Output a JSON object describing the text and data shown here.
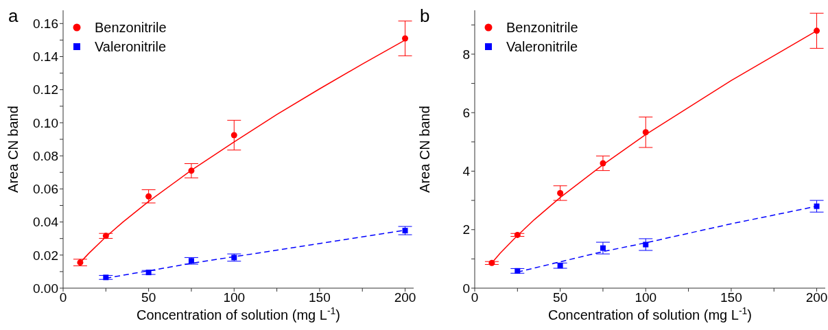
{
  "chart_data": [
    {
      "type": "scatter",
      "title": "a",
      "xlabel": "Concentration of solution (mg L$^{-1}$)",
      "ylabel": "Area CN band",
      "xlim": [
        0,
        205
      ],
      "xticks": [
        0,
        {
          "value": 25,
          "label": null
        },
        50,
        {
          "value": 75,
          "label": null
        },
        100,
        {
          "value": 125,
          "label": null
        },
        150,
        {
          "value": 175,
          "label": null
        },
        200
      ],
      "ylim": [
        0,
        0.168
      ],
      "yticks": [
        {
          "value": 0,
          "label": "0.00"
        },
        {
          "value": 0.01,
          "label": null
        },
        {
          "value": 0.02,
          "label": "0.02"
        },
        {
          "value": 0.03,
          "label": null
        },
        {
          "value": 0.04,
          "label": "0.04"
        },
        {
          "value": 0.05,
          "label": null
        },
        {
          "value": 0.06,
          "label": "0.06"
        },
        {
          "value": 0.07,
          "label": null
        },
        {
          "value": 0.08,
          "label": "0.08"
        },
        {
          "value": 0.09,
          "label": null
        },
        {
          "value": 0.1,
          "label": "0.10"
        },
        {
          "value": 0.11,
          "label": null
        },
        {
          "value": 0.12,
          "label": "0.12"
        },
        {
          "value": 0.13,
          "label": null
        },
        {
          "value": 0.14,
          "label": "0.14"
        },
        {
          "value": 0.15,
          "label": null
        },
        {
          "value": 0.16,
          "label": "0.16"
        }
      ],
      "grid": false,
      "legend": "top left",
      "series": [
        {
          "name": "Benzonitrile",
          "color": "#ff0000",
          "marker": "circle",
          "x": [
            10,
            25,
            50,
            75,
            100,
            200
          ],
          "values": [
            0.0155,
            0.0316,
            0.0555,
            0.071,
            0.0925,
            0.151
          ],
          "errors": [
            0.002,
            0.0015,
            0.004,
            0.0043,
            0.009,
            0.0105
          ]
        },
        {
          "name": "Valeronitrile",
          "color": "#0000ff",
          "marker": "square",
          "x": [
            25,
            50,
            75,
            100,
            200
          ],
          "values": [
            0.0065,
            0.0095,
            0.0165,
            0.0185,
            0.0348
          ],
          "errors": [
            0.0012,
            0.0012,
            0.002,
            0.0022,
            0.0025
          ]
        },
        {
          "type": "line",
          "color": "#ff0000",
          "marker": "none",
          "line_style": "solid",
          "x": [
            10,
            15,
            25,
            35,
            50,
            75,
            100,
            125,
            150,
            175,
            200
          ],
          "values": [
            0.0155,
            0.021,
            0.031,
            0.04,
            0.0524,
            0.0713,
            0.0884,
            0.105,
            0.1205,
            0.1355,
            0.15
          ]
        },
        {
          "type": "line",
          "color": "#0000ff",
          "marker": "none",
          "line_style": "dashed",
          "x": [
            25,
            50,
            75,
            100,
            150,
            200
          ],
          "values": [
            0.006,
            0.0105,
            0.015,
            0.019,
            0.027,
            0.035
          ]
        }
      ]
    },
    {
      "type": "scatter",
      "title": "b",
      "xlabel": "Concentration of solution (mg L$^{-1}$)",
      "ylabel": "Area CN band",
      "xlim": [
        0,
        205
      ],
      "xticks": [
        0,
        {
          "value": 25,
          "label": null
        },
        50,
        {
          "value": 75,
          "label": null
        },
        100,
        {
          "value": 125,
          "label": null
        },
        150,
        {
          "value": 175,
          "label": null
        },
        200
      ],
      "ylim": [
        0,
        9.5
      ],
      "yticks": [
        0,
        {
          "value": 1,
          "label": null
        },
        2,
        {
          "value": 3,
          "label": null
        },
        4,
        {
          "value": 5,
          "label": null
        },
        6,
        {
          "value": 7,
          "label": null
        },
        8,
        {
          "value": 9,
          "label": null
        }
      ],
      "grid": false,
      "legend": "top left",
      "series": [
        {
          "name": "Benzonitrile",
          "color": "#ff0000",
          "marker": "circle",
          "x": [
            10,
            25,
            50,
            75,
            100,
            200
          ],
          "values": [
            0.86,
            1.82,
            3.25,
            4.27,
            5.33,
            8.8
          ],
          "errors": [
            0.05,
            0.05,
            0.25,
            0.25,
            0.52,
            0.6
          ]
        },
        {
          "name": "Valeronitrile",
          "color": "#0000ff",
          "marker": "square",
          "x": [
            25,
            50,
            75,
            100,
            200
          ],
          "values": [
            0.59,
            0.77,
            1.37,
            1.49,
            2.8
          ],
          "errors": [
            0.08,
            0.09,
            0.2,
            0.2,
            0.2
          ]
        },
        {
          "type": "line",
          "color": "#ff0000",
          "marker": "none",
          "line_style": "solid",
          "x": [
            10,
            15,
            25,
            35,
            50,
            75,
            100,
            150,
            200
          ],
          "values": [
            0.86,
            1.2,
            1.8,
            2.35,
            3.1,
            4.22,
            5.25,
            7.1,
            8.8
          ]
        },
        {
          "type": "line",
          "color": "#0000ff",
          "marker": "none",
          "line_style": "dashed",
          "x": [
            25,
            50,
            75,
            100,
            150,
            200
          ],
          "values": [
            0.55,
            0.9,
            1.25,
            1.55,
            2.2,
            2.8
          ]
        }
      ]
    }
  ]
}
